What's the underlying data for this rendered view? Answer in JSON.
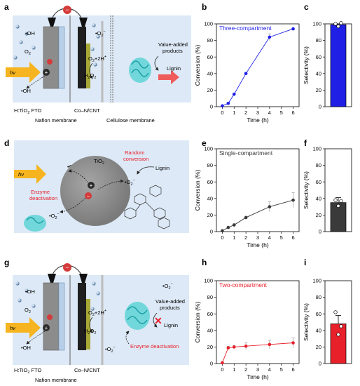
{
  "panels": {
    "a": "a",
    "b": "b",
    "c": "c",
    "d": "d",
    "e": "e",
    "f": "f",
    "g": "g",
    "h": "h",
    "i": "i"
  },
  "diagram_a": {
    "hv": "hν",
    "oh1": "•OH",
    "oh2": "•OH",
    "o2": "O",
    "o2_sub": "2",
    "electrode1": "H:TiO",
    "electrode1_sub": "2",
    "electrode1_tail": " FTO",
    "electrode2": "Co–N/CNT",
    "superoxide": "•O",
    "superoxide_sub": "2",
    "superoxide_sup": "−",
    "o2h": "O",
    "o2h_sub": "2",
    "o2h_tail": "+2H",
    "o2h_sup": "+",
    "h2o2": "H",
    "h2o2_sub1": "2",
    "h2o2_mid": "O",
    "h2o2_sub2": "2",
    "products": "Value-added",
    "products2": "products",
    "lignin": "Lignin",
    "membrane1": "Nafion membrane",
    "membrane2": "Cellulose membrane",
    "minus": "−",
    "plus": "+"
  },
  "diagram_d": {
    "hv": "hν",
    "oh": "•OH",
    "catalyst": "TiO",
    "catalyst_sub": "2",
    "random1": "Random",
    "random2": "conversion",
    "enzyme1": "Enzyme",
    "enzyme2": "deactivation",
    "superoxide": "•O",
    "superoxide_sub": "2",
    "superoxide_sup": "−",
    "lignin": "Lignin",
    "minus": "−",
    "plus": "+"
  },
  "diagram_g": {
    "hv": "hν",
    "oh1": "•OH",
    "oh2": "•OH",
    "o2": "O",
    "o2_sub": "2",
    "electrode1": "H:TiO",
    "electrode1_sub": "2",
    "electrode1_tail": " FTO",
    "electrode2": "Co–N/CNT",
    "superoxide": "•O",
    "superoxide_sub": "2",
    "superoxide_sup": "−",
    "o2h": "O",
    "o2h_sub": "2",
    "o2h_tail": "+2H",
    "o2h_sup": "+",
    "h2o2": "H",
    "h2o2_sub1": "2",
    "h2o2_mid": "O",
    "h2o2_sub2": "2",
    "products": "Value-added",
    "products2": "products",
    "lignin": "Lignin",
    "enzyme": "Enzyme deactivation",
    "membrane1": "Nafion membrane",
    "minus": "−",
    "plus": "+",
    "cross": "✕"
  },
  "colors": {
    "blue": "#1f1fe6",
    "dark": "#3a3a3a",
    "red": "#e8202a",
    "bg_panel": "#dde9f6"
  },
  "chart_data": [
    {
      "panel": "b",
      "type": "line",
      "title": "Three-compartment",
      "xlabel": "Time (h)",
      "ylabel": "Conversion (%)",
      "xlim": [
        -0.5,
        6.5
      ],
      "ylim": [
        0,
        100
      ],
      "xticks": [
        0,
        1,
        2,
        3,
        4,
        5,
        6
      ],
      "yticks": [
        0,
        20,
        40,
        60,
        80,
        100
      ],
      "color": "#1f1fe6",
      "series": [
        {
          "x": [
            0,
            0.5,
            1,
            2,
            4,
            6
          ],
          "y": [
            1,
            4,
            15,
            40,
            84,
            94
          ],
          "err": [
            0.5,
            0.5,
            1.5,
            1,
            4,
            1
          ]
        }
      ]
    },
    {
      "panel": "c",
      "type": "bar",
      "ylabel": "Selectivity (%)",
      "ylim": [
        0,
        100
      ],
      "yticks": [
        0,
        20,
        40,
        60,
        80,
        100
      ],
      "color": "#1f1fe6",
      "values": [
        99
      ],
      "err": [
        3
      ],
      "points": [
        100,
        97,
        101
      ]
    },
    {
      "panel": "e",
      "type": "line",
      "title": "Single-compartment",
      "xlabel": "Time (h)",
      "ylabel": "Conversion (%)",
      "xlim": [
        -0.5,
        6.5
      ],
      "ylim": [
        0,
        100
      ],
      "xticks": [
        0,
        1,
        2,
        3,
        4,
        5,
        6
      ],
      "yticks": [
        0,
        20,
        40,
        60,
        80,
        100
      ],
      "color": "#3a3a3a",
      "series": [
        {
          "x": [
            0,
            0.5,
            1,
            2,
            4,
            6
          ],
          "y": [
            1,
            5,
            8,
            17,
            30,
            38
          ],
          "err": [
            0.5,
            1,
            1.5,
            1.5,
            6,
            9
          ]
        }
      ]
    },
    {
      "panel": "f",
      "type": "bar",
      "ylabel": "Selectivity (%)",
      "ylim": [
        0,
        100
      ],
      "yticks": [
        0,
        20,
        40,
        60,
        80,
        100
      ],
      "color": "#3a3a3a",
      "values": [
        35
      ],
      "err": [
        6
      ],
      "points": [
        38,
        31,
        37
      ]
    },
    {
      "panel": "h",
      "type": "line",
      "title": "Two-compartment",
      "xlabel": "Time (h)",
      "ylabel": "Conversion (%)",
      "xlim": [
        -0.5,
        6.5
      ],
      "ylim": [
        0,
        100
      ],
      "xticks": [
        0,
        1,
        2,
        3,
        4,
        5,
        6
      ],
      "yticks": [
        0,
        20,
        40,
        60,
        80,
        100
      ],
      "color": "#e8202a",
      "series": [
        {
          "x": [
            0,
            0.5,
            1,
            2,
            4,
            6
          ],
          "y": [
            1,
            19,
            20,
            21,
            23,
            25
          ],
          "err": [
            0.5,
            2,
            2,
            4,
            5,
            6
          ]
        }
      ]
    },
    {
      "panel": "i",
      "type": "bar",
      "ylabel": "Selectivity (%)",
      "ylim": [
        0,
        100
      ],
      "yticks": [
        0,
        20,
        40,
        60,
        80,
        100
      ],
      "color": "#e8202a",
      "values": [
        48
      ],
      "err": [
        10
      ],
      "points": [
        62,
        35,
        45
      ]
    }
  ]
}
